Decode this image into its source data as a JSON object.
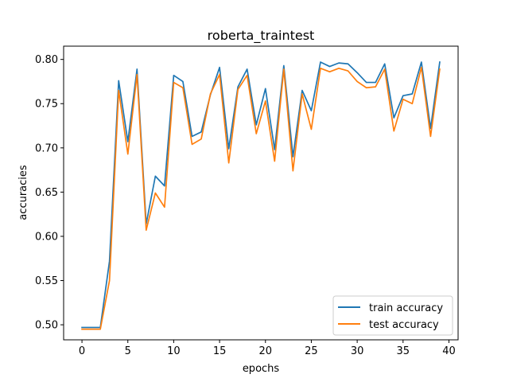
{
  "chart_data": {
    "type": "line",
    "title": "roberta_traintest",
    "xlabel": "epochs",
    "ylabel": "accuracies",
    "xlim": [
      -2,
      41
    ],
    "ylim": [
      0.483,
      0.815
    ],
    "xticks": [
      0,
      5,
      10,
      15,
      20,
      25,
      30,
      35,
      40
    ],
    "yticks": [
      0.5,
      0.55,
      0.6,
      0.65,
      0.7,
      0.75,
      0.8
    ],
    "xtick_labels": [
      "0",
      "5",
      "10",
      "15",
      "20",
      "25",
      "30",
      "35",
      "40"
    ],
    "ytick_labels": [
      "0.50",
      "0.55",
      "0.60",
      "0.65",
      "0.70",
      "0.75",
      "0.80"
    ],
    "grid": false,
    "legend": "lower-right",
    "x": [
      0,
      1,
      2,
      3,
      4,
      5,
      6,
      7,
      8,
      9,
      10,
      11,
      12,
      13,
      14,
      15,
      16,
      17,
      18,
      19,
      20,
      21,
      22,
      23,
      24,
      25,
      26,
      27,
      28,
      29,
      30,
      31,
      32,
      33,
      34,
      35,
      36,
      37,
      38,
      39
    ],
    "series": [
      {
        "name": "train accuracy",
        "color": "#1f77b4",
        "values": [
          0.497,
          0.497,
          0.497,
          0.572,
          0.776,
          0.707,
          0.789,
          0.614,
          0.668,
          0.657,
          0.782,
          0.775,
          0.713,
          0.718,
          0.76,
          0.791,
          0.699,
          0.769,
          0.789,
          0.726,
          0.767,
          0.698,
          0.793,
          0.69,
          0.765,
          0.742,
          0.797,
          0.792,
          0.796,
          0.795,
          0.785,
          0.774,
          0.774,
          0.795,
          0.734,
          0.759,
          0.761,
          0.797,
          0.722,
          0.797
        ]
      },
      {
        "name": "test accuracy",
        "color": "#ff7f0e",
        "values": [
          0.495,
          0.495,
          0.495,
          0.55,
          0.765,
          0.693,
          0.783,
          0.607,
          0.649,
          0.633,
          0.774,
          0.768,
          0.704,
          0.71,
          0.761,
          0.783,
          0.683,
          0.766,
          0.782,
          0.716,
          0.753,
          0.685,
          0.789,
          0.674,
          0.761,
          0.721,
          0.79,
          0.786,
          0.79,
          0.787,
          0.775,
          0.768,
          0.769,
          0.789,
          0.719,
          0.755,
          0.75,
          0.791,
          0.713,
          0.789
        ]
      }
    ]
  }
}
